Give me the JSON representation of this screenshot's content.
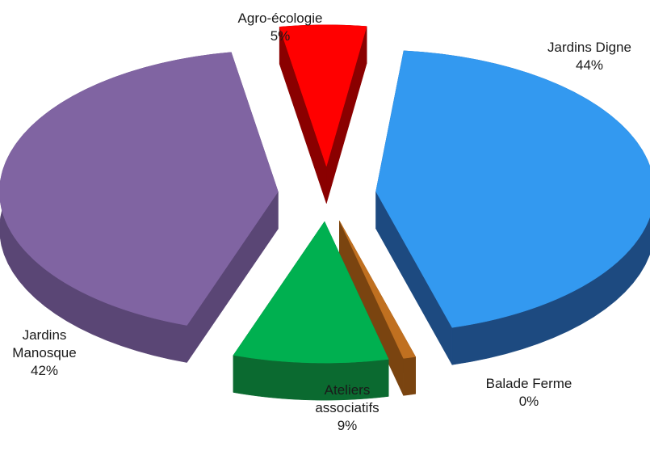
{
  "chart_data": {
    "type": "pie",
    "style": "3d-exploded",
    "slices": [
      {
        "label_lines": [
          "Jardins Digne"
        ],
        "percent_label": "44%",
        "value": 44,
        "color": "#3399f0",
        "side_color": "#1d4a80"
      },
      {
        "label_lines": [
          "Balade Ferme"
        ],
        "percent_label": "0%",
        "value": 0,
        "color": "#c07020",
        "side_color": "#7a4410"
      },
      {
        "label_lines": [
          "Ateliers",
          "associatifs"
        ],
        "percent_label": "9%",
        "value": 9,
        "color": "#00b050",
        "side_color": "#0b6a30"
      },
      {
        "label_lines": [
          "Jardins",
          "Manosque"
        ],
        "percent_label": "42%",
        "value": 42,
        "color": "#8064a2",
        "side_color": "#5a4675"
      },
      {
        "label_lines": [
          "Agro-écologie"
        ],
        "percent_label": "5%",
        "value": 5,
        "color": "#ff0000",
        "side_color": "#8a0000"
      }
    ]
  }
}
